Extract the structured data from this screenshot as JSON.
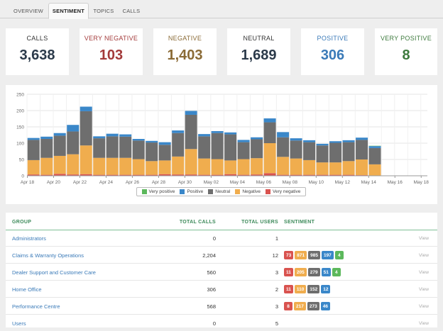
{
  "tabs": [
    {
      "label": "OVERVIEW"
    },
    {
      "label": "SENTIMENT"
    },
    {
      "label": "TOPICS"
    },
    {
      "label": "CALLS"
    }
  ],
  "cards": [
    {
      "label": "CALLS",
      "value": "3,638",
      "color": "#333333",
      "value_color": "#2b3a4a"
    },
    {
      "label": "VERY NEGATIVE",
      "value": "103",
      "color": "#a33a3a",
      "value_color": "#a33a3a"
    },
    {
      "label": "NEGATIVE",
      "value": "1,403",
      "color": "#8a6a35",
      "value_color": "#8a6a35"
    },
    {
      "label": "NEUTRAL",
      "value": "1,689",
      "color": "#333333",
      "value_color": "#2b3a4a"
    },
    {
      "label": "POSITIVE",
      "value": "306",
      "color": "#3a7ab8",
      "value_color": "#3a7ab8"
    },
    {
      "label": "VERY POSITIVE",
      "value": "8",
      "color": "#3d7a3d",
      "value_color": "#3d7a3d"
    }
  ],
  "chart_data": {
    "type": "bar",
    "stacked": true,
    "ylim": [
      0,
      250
    ],
    "yticks": [
      0,
      50,
      100,
      150,
      200,
      250
    ],
    "xtick_labels": [
      "Apr 18",
      "Apr 20",
      "Apr 22",
      "Apr 24",
      "Apr 26",
      "Apr 28",
      "Apr 30",
      "May 02",
      "May 04",
      "May 06",
      "May 08",
      "May 10",
      "May 12",
      "May 14",
      "May 16",
      "May 18"
    ],
    "categories": [
      "Apr 18",
      "Apr 19",
      "Apr 20",
      "Apr 21",
      "Apr 22",
      "Apr 23",
      "Apr 24",
      "Apr 25",
      "Apr 26",
      "Apr 27",
      "Apr 28",
      "Apr 29",
      "Apr 30",
      "May 01",
      "May 02",
      "May 03",
      "May 04",
      "May 05",
      "May 06",
      "May 07",
      "May 08",
      "May 09",
      "May 10",
      "May 11",
      "May 12",
      "May 13",
      "May 14",
      "May 15",
      "May 16",
      "May 17",
      "May 18"
    ],
    "grid": true,
    "legend_position": "bottom",
    "series": [
      {
        "name": "Very negative",
        "color": "#d9534f",
        "values": [
          4,
          3,
          6,
          4,
          5,
          3,
          3,
          3,
          3,
          3,
          5,
          4,
          4,
          3,
          3,
          5,
          3,
          4,
          8,
          3,
          3,
          3,
          3,
          3,
          3,
          2,
          0,
          0,
          0,
          0,
          0
        ]
      },
      {
        "name": "Negative",
        "color": "#f0ad4e",
        "values": [
          44,
          52,
          55,
          62,
          88,
          52,
          52,
          52,
          48,
          42,
          42,
          55,
          78,
          50,
          48,
          42,
          48,
          50,
          92,
          55,
          50,
          45,
          38,
          38,
          42,
          48,
          35,
          0,
          0,
          0,
          0
        ]
      },
      {
        "name": "Neutral",
        "color": "#6e6e6e",
        "values": [
          62,
          58,
          62,
          70,
          105,
          60,
          66,
          65,
          57,
          57,
          48,
          72,
          105,
          68,
          80,
          80,
          52,
          58,
          64,
          60,
          55,
          55,
          52,
          60,
          58,
          60,
          50,
          0,
          0,
          0,
          0
        ]
      },
      {
        "name": "Positive",
        "color": "#3a87c9",
        "values": [
          6,
          7,
          8,
          20,
          14,
          6,
          8,
          7,
          5,
          5,
          8,
          8,
          12,
          7,
          6,
          6,
          7,
          6,
          12,
          16,
          7,
          6,
          5,
          5,
          6,
          7,
          6,
          0,
          0,
          0,
          0
        ]
      },
      {
        "name": "Very positive",
        "color": "#5cb85c",
        "values": [
          0,
          0,
          0,
          0,
          0,
          0,
          0,
          0,
          0,
          0,
          0,
          0,
          0,
          0,
          0,
          0,
          0,
          0,
          0,
          0,
          0,
          0,
          0,
          0,
          0,
          0,
          1,
          0,
          0,
          0,
          0
        ]
      }
    ]
  },
  "legend": [
    {
      "label": "Very positive",
      "color": "#5cb85c"
    },
    {
      "label": "Positive",
      "color": "#3a87c9"
    },
    {
      "label": "Neutral",
      "color": "#6e6e6e"
    },
    {
      "label": "Negative",
      "color": "#f0ad4e"
    },
    {
      "label": "Very negative",
      "color": "#d9534f"
    }
  ],
  "table": {
    "headers": {
      "group": "GROUP",
      "total_calls": "TOTAL CALLS",
      "total_users": "TOTAL USERS",
      "sentiment": "SENTIMENT"
    },
    "view_label": "View",
    "rows": [
      {
        "group": "Administrators",
        "calls": "0",
        "users": "1",
        "sentiment": []
      },
      {
        "group": "Claims & Warranty Operations",
        "calls": "2,204",
        "users": "12",
        "sentiment": [
          {
            "v": "73",
            "c": "#d9534f"
          },
          {
            "v": "871",
            "c": "#f0ad4e"
          },
          {
            "v": "985",
            "c": "#6e6e6e"
          },
          {
            "v": "197",
            "c": "#3a87c9"
          },
          {
            "v": "4",
            "c": "#5cb85c"
          }
        ]
      },
      {
        "group": "Dealer Support and Customer Care",
        "calls": "560",
        "users": "3",
        "sentiment": [
          {
            "v": "11",
            "c": "#d9534f"
          },
          {
            "v": "205",
            "c": "#f0ad4e"
          },
          {
            "v": "279",
            "c": "#6e6e6e"
          },
          {
            "v": "51",
            "c": "#3a87c9"
          },
          {
            "v": "4",
            "c": "#5cb85c"
          }
        ]
      },
      {
        "group": "Home Office",
        "calls": "306",
        "users": "2",
        "sentiment": [
          {
            "v": "11",
            "c": "#d9534f"
          },
          {
            "v": "110",
            "c": "#f0ad4e"
          },
          {
            "v": "152",
            "c": "#6e6e6e"
          },
          {
            "v": "12",
            "c": "#3a87c9"
          }
        ]
      },
      {
        "group": "Performance Centre",
        "calls": "568",
        "users": "3",
        "sentiment": [
          {
            "v": "8",
            "c": "#d9534f"
          },
          {
            "v": "217",
            "c": "#f0ad4e"
          },
          {
            "v": "273",
            "c": "#6e6e6e"
          },
          {
            "v": "46",
            "c": "#3a87c9"
          }
        ]
      },
      {
        "group": "Users",
        "calls": "0",
        "users": "5",
        "sentiment": []
      }
    ]
  }
}
